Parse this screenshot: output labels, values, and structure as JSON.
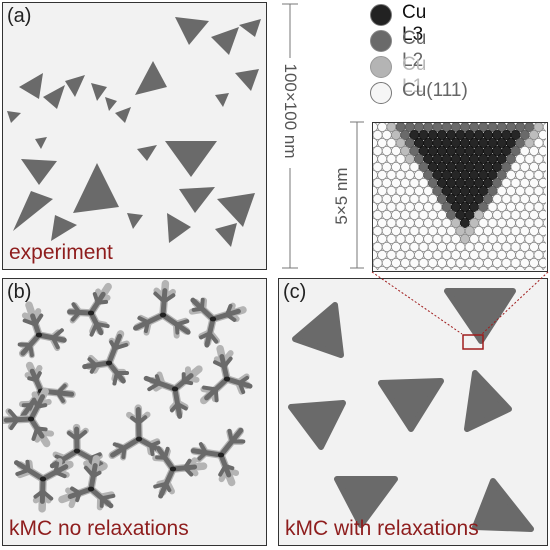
{
  "panels": {
    "a": {
      "label": "(a)",
      "caption": "experiment"
    },
    "b": {
      "label": "(b)",
      "caption": "kMC no relaxations"
    },
    "c": {
      "label": "(c)",
      "caption": "kMC with relaxations"
    }
  },
  "scale": {
    "large": "100×100 nm",
    "small": "5×5 nm"
  },
  "legend": [
    {
      "label": "Cu L3",
      "fill": "#222222",
      "text_color": "#111111"
    },
    {
      "label": "Cu L2",
      "fill": "#6a6a6a",
      "text_color": "#666666"
    },
    {
      "label": "Cu L1",
      "fill": "#b4b4b4",
      "text_color": "#b8b8b8"
    },
    {
      "label": "Cu(111)",
      "fill": "#f6f6f6",
      "text_color": "#666666"
    }
  ],
  "colors": {
    "island": "#6a6a6a",
    "background": "#f2f2f2",
    "caption": "#8e1d1d",
    "zoom_box": "#a01c1c"
  }
}
